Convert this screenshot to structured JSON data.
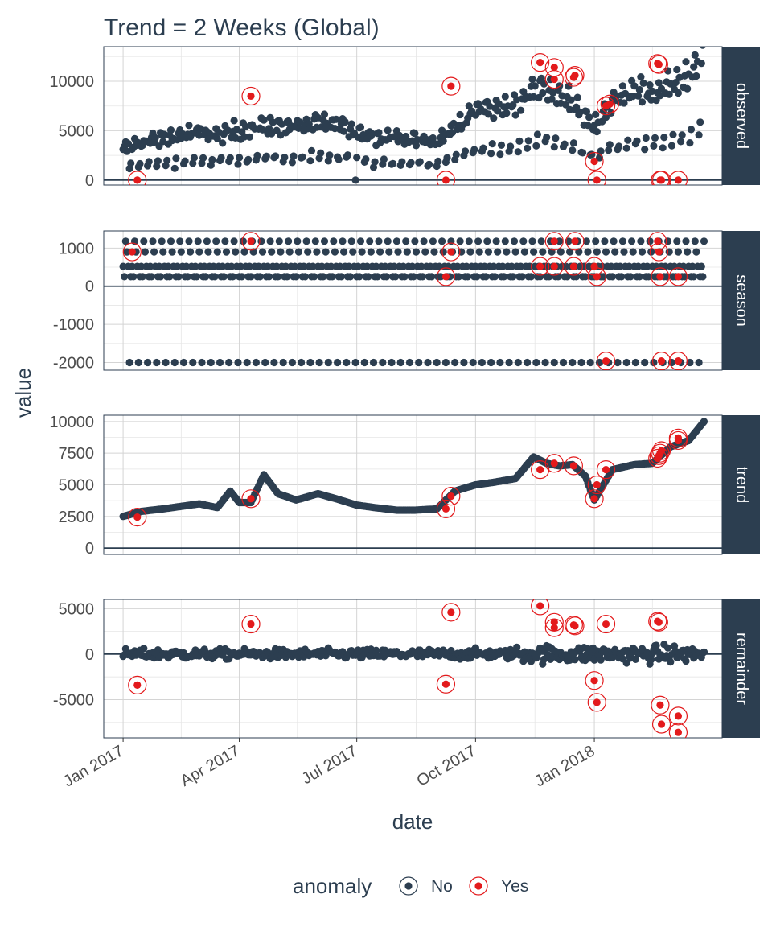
{
  "chart_data": {
    "type": "scatter",
    "title": "Trend = 2 Weeks (Global)",
    "xlabel": "date",
    "ylabel": "value",
    "x_ticks": [
      "Jan 2017",
      "Apr 2017",
      "Jul 2017",
      "Oct 2017",
      "Jan 2018"
    ],
    "xlim": [
      "2016-12-17",
      "2018-04-10"
    ],
    "legend": {
      "title": "anomaly",
      "placement": "bottom",
      "entries": [
        {
          "label": "No",
          "color": "#2c3e50"
        },
        {
          "label": "Yes",
          "color": "#e31a1c"
        }
      ]
    },
    "colors": {
      "normal": "#2c3e50",
      "anomaly": "#e31a1c",
      "strip": "#2c3e50",
      "strip_text": "#ffffff",
      "grid": "#d4d4d4"
    },
    "panels": [
      {
        "name": "observed",
        "ylim": [
          -500,
          13500
        ],
        "y_ticks": [
          0,
          5000,
          10000
        ],
        "note": "daily values, approximate; anomalies listed as [date, value]",
        "series": [
          {
            "name": "observed",
            "x": [
              "2017-01-01",
              "2017-01-15",
              "2017-02-01",
              "2017-02-15",
              "2017-03-01",
              "2017-03-15",
              "2017-04-01",
              "2017-04-15",
              "2017-05-01",
              "2017-05-15",
              "2017-06-01",
              "2017-06-15",
              "2017-07-01",
              "2017-07-15",
              "2017-08-01",
              "2017-08-15",
              "2017-09-01",
              "2017-09-15",
              "2017-10-01",
              "2017-10-15",
              "2017-11-01",
              "2017-11-15",
              "2017-12-01",
              "2017-12-15",
              "2018-01-01",
              "2018-01-15",
              "2018-02-01",
              "2018-02-15",
              "2018-03-01",
              "2018-03-15",
              "2018-03-27"
            ],
            "y": [
              2600,
              3200,
              3500,
              3800,
              4000,
              3800,
              4200,
              4500,
              4600,
              4500,
              4800,
              4700,
              4200,
              3700,
              3600,
              3400,
              3200,
              4500,
              6000,
              6200,
              6300,
              8000,
              7500,
              6500,
              4500,
              6800,
              7600,
              7400,
              8000,
              8800,
              11000
            ]
          }
        ],
        "anomalies": [
          [
            "2017-01-12",
            0
          ],
          [
            "2017-04-10",
            8500
          ],
          [
            "2017-09-08",
            0
          ],
          [
            "2017-09-12",
            9500
          ],
          [
            "2017-11-20",
            11900
          ],
          [
            "2017-12-01",
            11400
          ],
          [
            "2017-12-01",
            10200
          ],
          [
            "2017-12-16",
            10400
          ],
          [
            "2017-12-17",
            10600
          ],
          [
            "2018-01-01",
            1900
          ],
          [
            "2018-01-03",
            0
          ],
          [
            "2018-01-10",
            7500
          ],
          [
            "2018-01-13",
            7700
          ],
          [
            "2018-02-19",
            11800
          ],
          [
            "2018-02-20",
            11700
          ],
          [
            "2018-02-21",
            0
          ],
          [
            "2018-02-22",
            0
          ],
          [
            "2018-03-07",
            0
          ]
        ]
      },
      {
        "name": "season",
        "ylim": [
          -2200,
          1450
        ],
        "y_ticks": [
          -2000,
          -1000,
          0,
          1000
        ],
        "weekly_levels": [
          -2000,
          250,
          520,
          900,
          1180
        ],
        "anomalies": [
          [
            "2017-01-08",
            900
          ],
          [
            "2017-04-10",
            1180
          ],
          [
            "2017-09-08",
            250
          ],
          [
            "2017-09-12",
            900
          ],
          [
            "2017-11-20",
            520
          ],
          [
            "2017-12-01",
            520
          ],
          [
            "2017-12-01",
            1180
          ],
          [
            "2017-12-16",
            520
          ],
          [
            "2017-12-17",
            1180
          ],
          [
            "2018-01-01",
            520
          ],
          [
            "2018-01-03",
            250
          ],
          [
            "2018-01-10",
            -1960
          ],
          [
            "2018-02-19",
            1180
          ],
          [
            "2018-02-20",
            900
          ],
          [
            "2018-02-21",
            250
          ],
          [
            "2018-02-22",
            -1960
          ],
          [
            "2018-03-07",
            250
          ],
          [
            "2018-03-07",
            -1960
          ]
        ]
      },
      {
        "name": "trend",
        "ylim": [
          -500,
          10500
        ],
        "y_ticks": [
          0,
          2500,
          5000,
          7500,
          10000
        ],
        "series": [
          {
            "name": "trend",
            "x": [
              "2017-01-01",
              "2017-01-15",
              "2017-02-01",
              "2017-02-15",
              "2017-03-01",
              "2017-03-15",
              "2017-03-25",
              "2017-04-01",
              "2017-04-10",
              "2017-04-20",
              "2017-05-01",
              "2017-05-15",
              "2017-06-01",
              "2017-06-15",
              "2017-07-01",
              "2017-07-15",
              "2017-08-01",
              "2017-08-15",
              "2017-09-01",
              "2017-09-15",
              "2017-10-01",
              "2017-10-15",
              "2017-11-01",
              "2017-11-15",
              "2017-11-25",
              "2017-12-05",
              "2017-12-15",
              "2017-12-25",
              "2018-01-01",
              "2018-01-15",
              "2018-02-01",
              "2018-02-15",
              "2018-03-01",
              "2018-03-15",
              "2018-03-27"
            ],
            "y": [
              2500,
              2900,
              3100,
              3300,
              3500,
              3200,
              4500,
              3600,
              3600,
              5800,
              4300,
              3800,
              4300,
              3900,
              3400,
              3200,
              3000,
              3000,
              3100,
              4500,
              5000,
              5200,
              5500,
              7200,
              6700,
              6500,
              6600,
              5700,
              3800,
              6200,
              6600,
              6700,
              8000,
              8500,
              10000
            ]
          }
        ],
        "anomalies": [
          [
            "2017-01-12",
            2450
          ],
          [
            "2017-04-10",
            3900
          ],
          [
            "2017-09-08",
            3100
          ],
          [
            "2017-09-12",
            4100
          ],
          [
            "2017-11-20",
            6200
          ],
          [
            "2017-12-01",
            6700
          ],
          [
            "2017-12-16",
            6500
          ],
          [
            "2018-01-01",
            3900
          ],
          [
            "2018-01-03",
            5000
          ],
          [
            "2018-01-10",
            6200
          ],
          [
            "2018-02-19",
            7100
          ],
          [
            "2018-02-20",
            7300
          ],
          [
            "2018-02-21",
            7500
          ],
          [
            "2018-02-22",
            7700
          ],
          [
            "2018-03-07",
            8500
          ],
          [
            "2018-03-07",
            8700
          ]
        ]
      },
      {
        "name": "remainder",
        "ylim": [
          -9200,
          6000
        ],
        "y_ticks": [
          -5000,
          0,
          5000
        ],
        "anomalies": [
          [
            "2017-01-12",
            -3400
          ],
          [
            "2017-04-10",
            3300
          ],
          [
            "2017-09-08",
            -3300
          ],
          [
            "2017-09-12",
            4600
          ],
          [
            "2017-11-20",
            5300
          ],
          [
            "2017-12-01",
            3500
          ],
          [
            "2017-12-01",
            2900
          ],
          [
            "2017-12-16",
            3200
          ],
          [
            "2017-12-17",
            3100
          ],
          [
            "2018-01-01",
            -2900
          ],
          [
            "2018-01-03",
            -5300
          ],
          [
            "2018-01-10",
            3300
          ],
          [
            "2018-02-19",
            3600
          ],
          [
            "2018-02-20",
            3500
          ],
          [
            "2018-02-21",
            -5600
          ],
          [
            "2018-02-22",
            -7700
          ],
          [
            "2018-03-07",
            -6800
          ],
          [
            "2018-03-07",
            -8600
          ]
        ]
      }
    ]
  }
}
